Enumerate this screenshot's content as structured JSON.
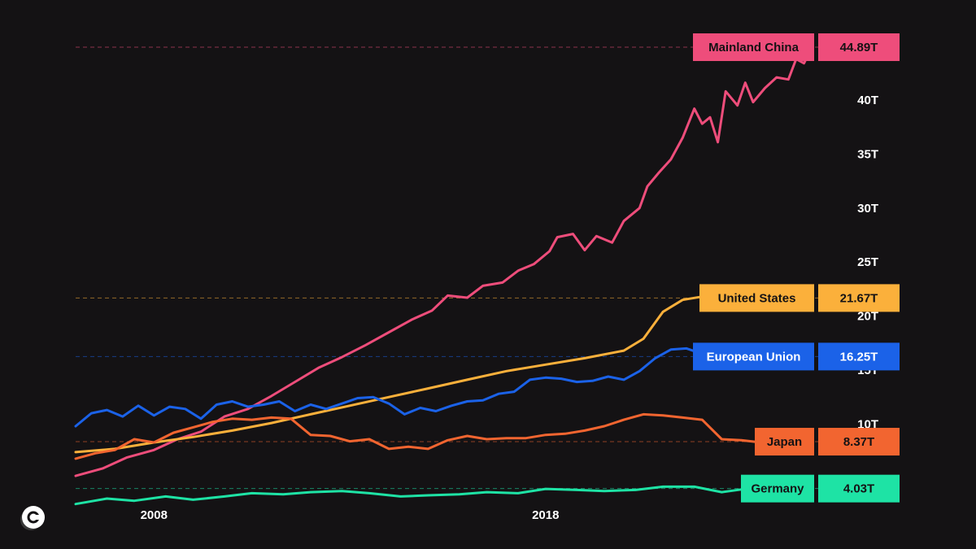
{
  "chart_data": {
    "type": "line",
    "title": "",
    "xlabel": "",
    "ylabel": "",
    "x_ticks": [
      "2008",
      "2018"
    ],
    "y_ticks": [
      "10T",
      "15T",
      "20T",
      "25T",
      "30T",
      "35T",
      "40T"
    ],
    "xlim": [
      2006.0,
      2026.5
    ],
    "ylim": [
      2.5,
      47.0
    ],
    "grid": false,
    "series": [
      {
        "name": "Mainland China",
        "color": "#ee4d7b",
        "label_value": "44.89T",
        "last": 44.89,
        "points": [
          [
            2006.0,
            5.2
          ],
          [
            2006.7,
            5.9
          ],
          [
            2007.3,
            6.9
          ],
          [
            2008.0,
            7.6
          ],
          [
            2008.6,
            8.6
          ],
          [
            2009.2,
            9.3
          ],
          [
            2009.8,
            10.7
          ],
          [
            2010.4,
            11.4
          ],
          [
            2011.0,
            12.6
          ],
          [
            2011.6,
            13.9
          ],
          [
            2012.2,
            15.2
          ],
          [
            2012.8,
            16.2
          ],
          [
            2013.4,
            17.3
          ],
          [
            2014.0,
            18.5
          ],
          [
            2014.6,
            19.7
          ],
          [
            2015.1,
            20.5
          ],
          [
            2015.5,
            21.9
          ],
          [
            2016.0,
            21.7
          ],
          [
            2016.4,
            22.8
          ],
          [
            2016.9,
            23.1
          ],
          [
            2017.3,
            24.2
          ],
          [
            2017.7,
            24.8
          ],
          [
            2018.1,
            26.0
          ],
          [
            2018.3,
            27.3
          ],
          [
            2018.7,
            27.6
          ],
          [
            2019.0,
            26.1
          ],
          [
            2019.3,
            27.4
          ],
          [
            2019.7,
            26.8
          ],
          [
            2020.0,
            28.8
          ],
          [
            2020.4,
            30.0
          ],
          [
            2020.6,
            32.0
          ],
          [
            2020.9,
            33.3
          ],
          [
            2021.2,
            34.5
          ],
          [
            2021.5,
            36.5
          ],
          [
            2021.8,
            39.2
          ],
          [
            2022.0,
            37.8
          ],
          [
            2022.2,
            38.4
          ],
          [
            2022.4,
            36.1
          ],
          [
            2022.6,
            40.8
          ],
          [
            2022.9,
            39.5
          ],
          [
            2023.1,
            41.6
          ],
          [
            2023.3,
            39.8
          ],
          [
            2023.6,
            41.1
          ],
          [
            2023.9,
            42.1
          ],
          [
            2024.2,
            41.9
          ],
          [
            2024.4,
            43.8
          ],
          [
            2024.6,
            43.4
          ],
          [
            2024.8,
            44.89
          ]
        ]
      },
      {
        "name": "United States",
        "color": "#fbb03b",
        "label_value": "21.67T",
        "last": 21.67,
        "points": [
          [
            2006.0,
            7.4
          ],
          [
            2007.0,
            7.7
          ],
          [
            2008.0,
            8.3
          ],
          [
            2009.0,
            8.8
          ],
          [
            2010.0,
            9.4
          ],
          [
            2011.0,
            10.1
          ],
          [
            2012.0,
            10.9
          ],
          [
            2013.0,
            11.7
          ],
          [
            2014.0,
            12.5
          ],
          [
            2015.0,
            13.3
          ],
          [
            2016.0,
            14.1
          ],
          [
            2017.0,
            14.9
          ],
          [
            2018.0,
            15.5
          ],
          [
            2019.0,
            16.1
          ],
          [
            2020.0,
            16.8
          ],
          [
            2020.5,
            17.9
          ],
          [
            2021.0,
            20.4
          ],
          [
            2021.5,
            21.5
          ],
          [
            2022.0,
            21.8
          ],
          [
            2022.5,
            21.4
          ],
          [
            2023.0,
            20.8
          ],
          [
            2023.5,
            20.7
          ],
          [
            2024.0,
            20.9
          ],
          [
            2024.5,
            21.3
          ],
          [
            2024.8,
            21.67
          ]
        ]
      },
      {
        "name": "European Union",
        "color": "#1b62e8",
        "label_value": "16.25T",
        "last": 16.25,
        "points": [
          [
            2006.0,
            9.8
          ],
          [
            2006.4,
            11.0
          ],
          [
            2006.8,
            11.3
          ],
          [
            2007.2,
            10.7
          ],
          [
            2007.6,
            11.7
          ],
          [
            2008.0,
            10.8
          ],
          [
            2008.4,
            11.6
          ],
          [
            2008.8,
            11.4
          ],
          [
            2009.2,
            10.5
          ],
          [
            2009.6,
            11.8
          ],
          [
            2010.0,
            12.1
          ],
          [
            2010.4,
            11.6
          ],
          [
            2010.8,
            11.8
          ],
          [
            2011.2,
            12.1
          ],
          [
            2011.6,
            11.2
          ],
          [
            2012.0,
            11.8
          ],
          [
            2012.4,
            11.4
          ],
          [
            2012.8,
            11.9
          ],
          [
            2013.2,
            12.4
          ],
          [
            2013.6,
            12.5
          ],
          [
            2014.0,
            11.9
          ],
          [
            2014.4,
            10.9
          ],
          [
            2014.8,
            11.5
          ],
          [
            2015.2,
            11.2
          ],
          [
            2015.6,
            11.7
          ],
          [
            2016.0,
            12.1
          ],
          [
            2016.4,
            12.2
          ],
          [
            2016.8,
            12.8
          ],
          [
            2017.2,
            13.0
          ],
          [
            2017.6,
            14.1
          ],
          [
            2018.0,
            14.3
          ],
          [
            2018.4,
            14.2
          ],
          [
            2018.8,
            13.9
          ],
          [
            2019.2,
            14.0
          ],
          [
            2019.6,
            14.4
          ],
          [
            2020.0,
            14.1
          ],
          [
            2020.4,
            14.9
          ],
          [
            2020.8,
            16.1
          ],
          [
            2021.2,
            16.9
          ],
          [
            2021.6,
            17.0
          ],
          [
            2022.0,
            16.5
          ],
          [
            2022.4,
            15.4
          ],
          [
            2022.8,
            16.4
          ],
          [
            2023.2,
            16.4
          ],
          [
            2023.6,
            16.5
          ],
          [
            2024.0,
            16.2
          ],
          [
            2024.4,
            16.5
          ],
          [
            2024.6,
            16.8
          ],
          [
            2024.8,
            16.25
          ]
        ]
      },
      {
        "name": "Japan",
        "color": "#f26530",
        "label_value": "8.37T",
        "last": 8.37,
        "points": [
          [
            2006.0,
            6.8
          ],
          [
            2006.5,
            7.3
          ],
          [
            2007.0,
            7.6
          ],
          [
            2007.5,
            8.6
          ],
          [
            2008.0,
            8.3
          ],
          [
            2008.5,
            9.2
          ],
          [
            2009.0,
            9.7
          ],
          [
            2009.5,
            10.2
          ],
          [
            2010.0,
            10.5
          ],
          [
            2010.5,
            10.4
          ],
          [
            2011.0,
            10.6
          ],
          [
            2011.5,
            10.5
          ],
          [
            2012.0,
            9.0
          ],
          [
            2012.5,
            8.9
          ],
          [
            2013.0,
            8.4
          ],
          [
            2013.5,
            8.6
          ],
          [
            2014.0,
            7.7
          ],
          [
            2014.5,
            7.9
          ],
          [
            2015.0,
            7.7
          ],
          [
            2015.5,
            8.5
          ],
          [
            2016.0,
            8.9
          ],
          [
            2016.5,
            8.6
          ],
          [
            2017.0,
            8.7
          ],
          [
            2017.5,
            8.7
          ],
          [
            2018.0,
            9.0
          ],
          [
            2018.5,
            9.1
          ],
          [
            2019.0,
            9.4
          ],
          [
            2019.5,
            9.8
          ],
          [
            2020.0,
            10.4
          ],
          [
            2020.5,
            10.9
          ],
          [
            2021.0,
            10.8
          ],
          [
            2021.5,
            10.6
          ],
          [
            2022.0,
            10.4
          ],
          [
            2022.5,
            8.6
          ],
          [
            2023.0,
            8.5
          ],
          [
            2023.5,
            8.3
          ],
          [
            2024.0,
            7.9
          ],
          [
            2024.3,
            8.6
          ],
          [
            2024.5,
            8.3
          ],
          [
            2024.8,
            8.37
          ]
        ]
      },
      {
        "name": "Germany",
        "color": "#1ee3a5",
        "label_value": "4.03T",
        "last": 4.03,
        "points": [
          [
            2006.0,
            2.6
          ],
          [
            2006.8,
            3.1
          ],
          [
            2007.5,
            2.9
          ],
          [
            2008.3,
            3.3
          ],
          [
            2009.0,
            3.0
          ],
          [
            2009.8,
            3.3
          ],
          [
            2010.5,
            3.6
          ],
          [
            2011.3,
            3.5
          ],
          [
            2012.0,
            3.7
          ],
          [
            2012.8,
            3.8
          ],
          [
            2013.5,
            3.6
          ],
          [
            2014.3,
            3.3
          ],
          [
            2015.0,
            3.4
          ],
          [
            2015.8,
            3.5
          ],
          [
            2016.5,
            3.7
          ],
          [
            2017.3,
            3.6
          ],
          [
            2018.0,
            4.0
          ],
          [
            2018.8,
            3.9
          ],
          [
            2019.5,
            3.8
          ],
          [
            2020.3,
            3.9
          ],
          [
            2021.0,
            4.2
          ],
          [
            2021.8,
            4.2
          ],
          [
            2022.5,
            3.7
          ],
          [
            2023.3,
            4.1
          ],
          [
            2024.0,
            4.0
          ],
          [
            2024.8,
            4.03
          ]
        ]
      }
    ]
  }
}
